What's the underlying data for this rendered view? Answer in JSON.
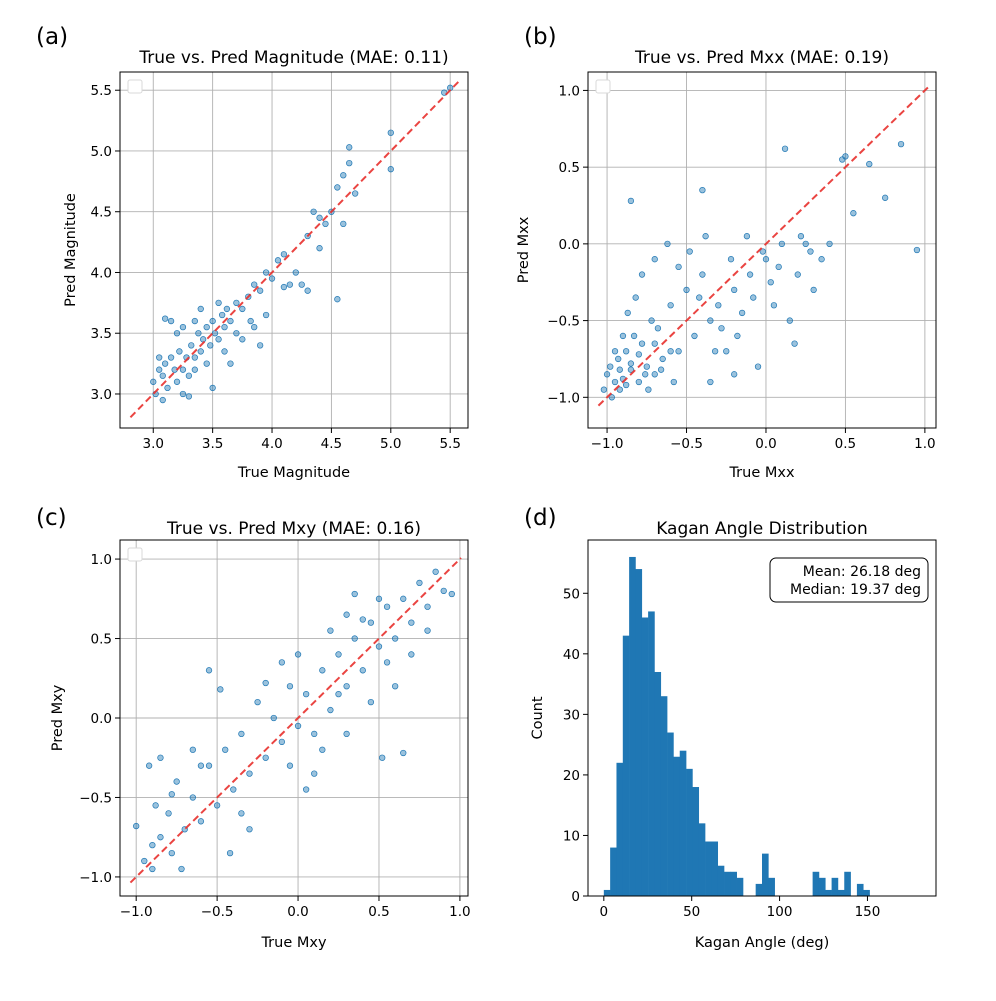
{
  "chart_data": [
    {
      "type": "scatter",
      "panel_label": "(a)",
      "title": "True vs. Pred Magnitude (MAE: 0.11)",
      "xlabel": "True Magnitude",
      "ylabel": "Pred Magnitude",
      "xlim": [
        2.72,
        5.65
      ],
      "ylim": [
        2.72,
        5.65
      ],
      "xticks": [
        "3.0",
        "3.5",
        "4.0",
        "4.5",
        "5.0",
        "5.5"
      ],
      "yticks": [
        "3.0",
        "3.5",
        "4.0",
        "4.5",
        "5.0",
        "5.5"
      ],
      "reference_line": "y = x (red dashed)",
      "grid": true,
      "legend": "top-left (empty)",
      "color": "#1f77b4",
      "points": [
        [
          3.0,
          3.1
        ],
        [
          3.02,
          3.0
        ],
        [
          3.05,
          3.2
        ],
        [
          3.08,
          3.15
        ],
        [
          3.1,
          3.25
        ],
        [
          3.12,
          3.05
        ],
        [
          3.15,
          3.3
        ],
        [
          3.18,
          3.2
        ],
        [
          3.2,
          3.1
        ],
        [
          3.22,
          3.35
        ],
        [
          3.25,
          3.2
        ],
        [
          3.28,
          3.3
        ],
        [
          3.3,
          3.15
        ],
        [
          3.32,
          3.4
        ],
        [
          3.35,
          3.3
        ],
        [
          3.38,
          3.5
        ],
        [
          3.4,
          3.35
        ],
        [
          3.42,
          3.45
        ],
        [
          3.45,
          3.55
        ],
        [
          3.48,
          3.4
        ],
        [
          3.5,
          3.6
        ],
        [
          3.52,
          3.5
        ],
        [
          3.55,
          3.45
        ],
        [
          3.58,
          3.65
        ],
        [
          3.6,
          3.55
        ],
        [
          3.62,
          3.7
        ],
        [
          3.65,
          3.6
        ],
        [
          3.7,
          3.75
        ],
        [
          3.75,
          3.7
        ],
        [
          3.8,
          3.8
        ],
        [
          3.85,
          3.9
        ],
        [
          3.9,
          3.85
        ],
        [
          3.95,
          4.0
        ],
        [
          4.0,
          3.95
        ],
        [
          4.05,
          4.1
        ],
        [
          4.1,
          4.15
        ],
        [
          4.15,
          3.9
        ],
        [
          4.2,
          4.0
        ],
        [
          4.25,
          3.9
        ],
        [
          4.3,
          3.85
        ],
        [
          4.35,
          4.5
        ],
        [
          4.4,
          4.45
        ],
        [
          4.45,
          4.4
        ],
        [
          4.5,
          4.5
        ],
        [
          4.55,
          4.7
        ],
        [
          4.6,
          4.8
        ],
        [
          4.65,
          4.9
        ],
        [
          4.7,
          4.65
        ],
        [
          4.55,
          3.78
        ],
        [
          4.65,
          5.03
        ],
        [
          5.0,
          5.15
        ],
        [
          5.0,
          4.85
        ],
        [
          5.45,
          5.48
        ],
        [
          5.5,
          5.52
        ],
        [
          3.1,
          3.62
        ],
        [
          3.2,
          3.5
        ],
        [
          3.25,
          3.0
        ],
        [
          3.3,
          2.98
        ],
        [
          3.15,
          3.6
        ],
        [
          3.4,
          3.7
        ],
        [
          3.55,
          3.75
        ],
        [
          3.7,
          3.5
        ],
        [
          3.82,
          3.6
        ],
        [
          3.9,
          3.4
        ],
        [
          3.95,
          3.65
        ],
        [
          4.1,
          3.88
        ],
        [
          4.3,
          4.3
        ],
        [
          4.4,
          4.2
        ],
        [
          4.6,
          4.4
        ],
        [
          3.05,
          3.3
        ],
        [
          3.08,
          2.95
        ],
        [
          3.35,
          3.2
        ],
        [
          3.45,
          3.25
        ],
        [
          3.5,
          3.05
        ],
        [
          3.6,
          3.35
        ],
        [
          3.65,
          3.25
        ],
        [
          3.75,
          3.45
        ],
        [
          3.85,
          3.55
        ],
        [
          3.25,
          3.55
        ],
        [
          3.35,
          3.6
        ]
      ]
    },
    {
      "type": "scatter",
      "panel_label": "(b)",
      "title": "True vs. Pred Mxx (MAE: 0.19)",
      "xlabel": "True Mxx",
      "ylabel": "Pred Mxx",
      "xlim": [
        -1.12,
        1.07
      ],
      "ylim": [
        -1.2,
        1.12
      ],
      "xticks": [
        "−1.0",
        "−0.5",
        "0.0",
        "0.5",
        "1.0"
      ],
      "yticks": [
        "−1.0",
        "−0.5",
        "0.0",
        "0.5",
        "1.0"
      ],
      "reference_line": "y = x (red dashed)",
      "grid": true,
      "legend": "top-left (empty)",
      "color": "#1f77b4",
      "points": [
        [
          -1.0,
          -0.85
        ],
        [
          -0.98,
          -0.8
        ],
        [
          -0.95,
          -0.9
        ],
        [
          -0.93,
          -0.75
        ],
        [
          -0.9,
          -0.88
        ],
        [
          -0.88,
          -0.7
        ],
        [
          -0.85,
          -0.82
        ],
        [
          -0.83,
          -0.6
        ],
        [
          -0.8,
          -0.9
        ],
        [
          -0.78,
          -0.65
        ],
        [
          -0.75,
          -0.8
        ],
        [
          -0.72,
          -0.5
        ],
        [
          -0.7,
          -0.85
        ],
        [
          -0.68,
          -0.55
        ],
        [
          -0.65,
          -0.75
        ],
        [
          -0.6,
          -0.4
        ],
        [
          -0.55,
          -0.7
        ],
        [
          -0.5,
          -0.3
        ],
        [
          -0.45,
          -0.6
        ],
        [
          -0.4,
          -0.2
        ],
        [
          -0.35,
          -0.5
        ],
        [
          -0.3,
          -0.4
        ],
        [
          -0.25,
          -0.7
        ],
        [
          -0.2,
          -0.3
        ],
        [
          -0.15,
          -0.45
        ],
        [
          -0.1,
          -0.2
        ],
        [
          -0.05,
          -0.8
        ],
        [
          0.0,
          -0.1
        ],
        [
          0.05,
          -0.4
        ],
        [
          0.1,
          0.0
        ],
        [
          0.15,
          -0.5
        ],
        [
          0.2,
          -0.2
        ],
        [
          0.25,
          0.0
        ],
        [
          0.3,
          -0.3
        ],
        [
          0.35,
          -0.1
        ],
        [
          0.4,
          0.0
        ],
        [
          0.48,
          0.55
        ],
        [
          0.5,
          0.57
        ],
        [
          0.55,
          0.2
        ],
        [
          0.65,
          0.52
        ],
        [
          0.75,
          0.3
        ],
        [
          0.85,
          0.65
        ],
        [
          0.95,
          -0.04
        ],
        [
          0.12,
          0.62
        ],
        [
          -0.4,
          0.35
        ],
        [
          -0.85,
          0.28
        ],
        [
          -0.35,
          -0.9
        ],
        [
          -0.2,
          -0.85
        ],
        [
          -1.02,
          -0.95
        ],
        [
          -0.97,
          -1.0
        ],
        [
          -0.92,
          -0.95
        ],
        [
          -0.9,
          -0.6
        ],
        [
          -0.87,
          -0.45
        ],
        [
          -0.82,
          -0.35
        ],
        [
          -0.78,
          -0.2
        ],
        [
          -0.7,
          -0.1
        ],
        [
          -0.62,
          0.0
        ],
        [
          -0.55,
          -0.15
        ],
        [
          -0.48,
          -0.05
        ],
        [
          -0.42,
          -0.35
        ],
        [
          -0.38,
          0.05
        ],
        [
          -0.32,
          -0.7
        ],
        [
          -0.28,
          -0.55
        ],
        [
          -0.22,
          -0.1
        ],
        [
          -0.18,
          -0.6
        ],
        [
          -0.12,
          0.05
        ],
        [
          -0.08,
          -0.35
        ],
        [
          -0.02,
          -0.05
        ],
        [
          0.03,
          -0.25
        ],
        [
          0.08,
          -0.15
        ],
        [
          0.18,
          -0.65
        ],
        [
          0.22,
          0.05
        ],
        [
          0.28,
          -0.05
        ],
        [
          -0.95,
          -0.7
        ],
        [
          -0.92,
          -0.82
        ],
        [
          -0.88,
          -0.92
        ],
        [
          -0.85,
          -0.78
        ],
        [
          -0.8,
          -0.72
        ],
        [
          -0.76,
          -0.85
        ],
        [
          -0.74,
          -0.95
        ],
        [
          -0.7,
          -0.65
        ],
        [
          -0.66,
          -0.82
        ],
        [
          -0.6,
          -0.7
        ],
        [
          -0.58,
          -0.9
        ]
      ]
    },
    {
      "type": "scatter",
      "panel_label": "(c)",
      "title": "True vs. Pred Mxy (MAE: 0.16)",
      "xlabel": "True Mxy",
      "ylabel": "Pred Mxy",
      "xlim": [
        -1.1,
        1.05
      ],
      "ylim": [
        -1.12,
        1.12
      ],
      "xticks": [
        "−1.0",
        "−0.5",
        "0.0",
        "0.5",
        "1.0"
      ],
      "yticks": [
        "−1.0",
        "−0.5",
        "0.0",
        "0.5",
        "1.0"
      ],
      "reference_line": "y = x (red dashed)",
      "grid": true,
      "legend": "top-left (empty)",
      "color": "#1f77b4",
      "points": [
        [
          -1.0,
          -0.68
        ],
        [
          -0.95,
          -0.9
        ],
        [
          -0.92,
          -0.3
        ],
        [
          -0.9,
          -0.8
        ],
        [
          -0.88,
          -0.55
        ],
        [
          -0.85,
          -0.75
        ],
        [
          -0.8,
          -0.6
        ],
        [
          -0.78,
          -0.85
        ],
        [
          -0.75,
          -0.4
        ],
        [
          -0.7,
          -0.7
        ],
        [
          -0.65,
          -0.5
        ],
        [
          -0.6,
          -0.65
        ],
        [
          -0.55,
          -0.3
        ],
        [
          -0.5,
          -0.55
        ],
        [
          -0.45,
          -0.2
        ],
        [
          -0.4,
          -0.45
        ],
        [
          -0.35,
          -0.1
        ],
        [
          -0.3,
          -0.35
        ],
        [
          -0.25,
          0.1
        ],
        [
          -0.2,
          -0.25
        ],
        [
          -0.15,
          0.0
        ],
        [
          -0.1,
          -0.15
        ],
        [
          -0.05,
          0.2
        ],
        [
          0.0,
          -0.05
        ],
        [
          0.05,
          0.15
        ],
        [
          0.1,
          -0.1
        ],
        [
          0.15,
          0.3
        ],
        [
          0.2,
          0.05
        ],
        [
          0.25,
          0.4
        ],
        [
          0.3,
          0.2
        ],
        [
          0.35,
          0.5
        ],
        [
          0.4,
          0.3
        ],
        [
          0.45,
          0.6
        ],
        [
          0.5,
          0.45
        ],
        [
          0.55,
          0.7
        ],
        [
          0.6,
          0.5
        ],
        [
          0.65,
          0.75
        ],
        [
          0.7,
          0.6
        ],
        [
          0.75,
          0.85
        ],
        [
          0.8,
          0.7
        ],
        [
          0.85,
          0.92
        ],
        [
          0.9,
          0.8
        ],
        [
          0.95,
          0.78
        ],
        [
          0.5,
          0.75
        ],
        [
          0.52,
          -0.25
        ],
        [
          0.65,
          -0.22
        ],
        [
          -0.55,
          0.3
        ],
        [
          -0.48,
          0.18
        ],
        [
          0.0,
          0.4
        ],
        [
          0.1,
          -0.35
        ],
        [
          0.3,
          -0.1
        ],
        [
          0.35,
          0.78
        ],
        [
          0.45,
          0.1
        ],
        [
          -0.2,
          0.22
        ],
        [
          -0.3,
          -0.7
        ],
        [
          -0.42,
          -0.85
        ],
        [
          -0.6,
          -0.3
        ],
        [
          -0.72,
          -0.95
        ],
        [
          -0.85,
          -0.25
        ],
        [
          0.2,
          0.55
        ],
        [
          0.4,
          0.62
        ],
        [
          0.6,
          0.2
        ],
        [
          0.7,
          0.4
        ],
        [
          -0.1,
          0.35
        ],
        [
          0.05,
          -0.45
        ],
        [
          -0.05,
          -0.3
        ],
        [
          0.15,
          -0.2
        ],
        [
          0.25,
          0.15
        ],
        [
          -0.35,
          -0.6
        ],
        [
          -0.65,
          -0.2
        ],
        [
          -0.78,
          -0.48
        ],
        [
          -0.9,
          -0.95
        ],
        [
          0.55,
          0.35
        ],
        [
          0.8,
          0.55
        ],
        [
          0.3,
          0.65
        ]
      ]
    },
    {
      "type": "bar",
      "subtype": "histogram",
      "panel_label": "(d)",
      "title": "Kagan Angle Distribution",
      "xlabel": "Kagan Angle (deg)",
      "ylabel": "Count",
      "xlim": [
        -9,
        189
      ],
      "ylim": [
        0,
        58.8
      ],
      "xticks": [
        "0",
        "50",
        "100",
        "150"
      ],
      "yticks": [
        "0",
        "10",
        "20",
        "30",
        "40",
        "50"
      ],
      "annotation": [
        "Mean: 26.18 deg",
        "Median: 19.37 deg"
      ],
      "color": "#1f77b4",
      "bin_width": 3.6,
      "bin_start": 0,
      "counts": [
        1,
        8,
        22,
        43,
        56,
        54,
        46,
        47,
        37,
        33,
        27,
        23,
        24,
        21,
        18,
        12,
        9,
        9,
        5,
        4,
        4,
        3,
        0,
        0,
        2,
        7,
        3,
        0,
        0,
        0,
        0,
        0,
        0,
        4,
        3,
        1,
        3,
        1,
        4,
        0,
        2,
        1,
        0,
        0,
        0,
        0,
        0,
        0,
        0,
        0
      ]
    }
  ]
}
